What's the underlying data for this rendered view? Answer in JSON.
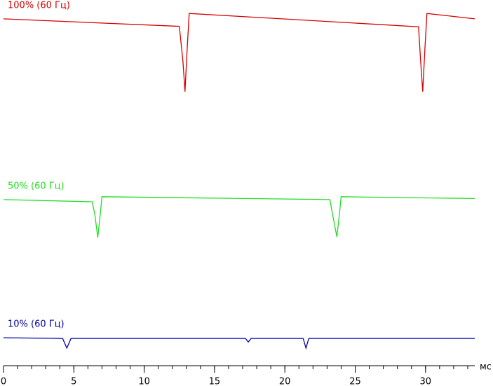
{
  "chart_data": {
    "type": "line",
    "x_label": "мс",
    "xlim": [
      0,
      33.5
    ],
    "ylim": [
      0,
      100
    ],
    "xticks": [
      0,
      5,
      10,
      15,
      20,
      25,
      30
    ],
    "xminorticks": [
      0,
      1,
      2,
      3,
      4,
      5,
      6,
      7,
      8,
      9,
      10,
      11,
      12,
      13,
      14,
      15,
      16,
      17,
      18,
      19,
      20,
      21,
      22,
      23,
      24,
      25,
      26,
      27,
      28,
      29,
      30,
      31,
      32,
      33
    ],
    "series": [
      {
        "name": "100% (60 Гц)",
        "color": "#d40000",
        "x": [
          0,
          12.5,
          12.75,
          12.9,
          13.05,
          13.2,
          29.5,
          29.65,
          29.8,
          29.95,
          30.1,
          33.5
        ],
        "values": [
          96.7,
          94.6,
          85,
          76.4,
          88,
          98.2,
          94.5,
          85,
          76.4,
          88,
          98.2,
          96.7
        ]
      },
      {
        "name": "50% (60 Гц)",
        "color": "#22dd22",
        "x": [
          0,
          6.3,
          6.5,
          6.7,
          6.9,
          7.0,
          23.2,
          23.4,
          23.7,
          23.9,
          24.0,
          33.5
        ],
        "values": [
          46.3,
          45.7,
          42,
          35.7,
          43,
          47.1,
          46.3,
          42,
          35.9,
          43,
          47.1,
          46.6
        ]
      },
      {
        "name": "10% (60 Гц)",
        "color": "#0000aa",
        "x": [
          0,
          4.2,
          4.5,
          4.8,
          17.2,
          17.4,
          17.6,
          21.3,
          21.5,
          21.7,
          33.5
        ],
        "values": [
          7.8,
          7.6,
          4.9,
          7.6,
          7.6,
          6.6,
          7.6,
          7.6,
          4.9,
          7.6,
          7.6
        ]
      }
    ]
  }
}
